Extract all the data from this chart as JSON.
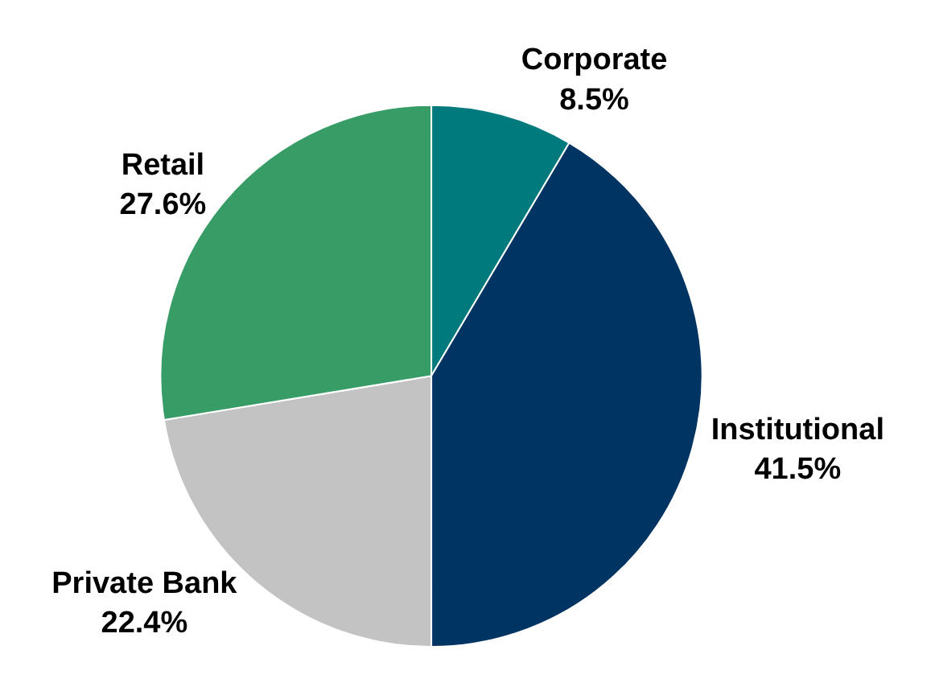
{
  "chart_data": {
    "type": "pie",
    "categories": [
      "Corporate",
      "Institutional",
      "Private Bank",
      "Retail"
    ],
    "values": [
      8.5,
      41.5,
      22.4,
      27.6
    ],
    "value_labels": [
      "8.5%",
      "41.5%",
      "22.4%",
      "27.6%"
    ],
    "colors": [
      "#007a7c",
      "#003462",
      "#c3c3c3",
      "#389c66"
    ],
    "legend": false
  }
}
